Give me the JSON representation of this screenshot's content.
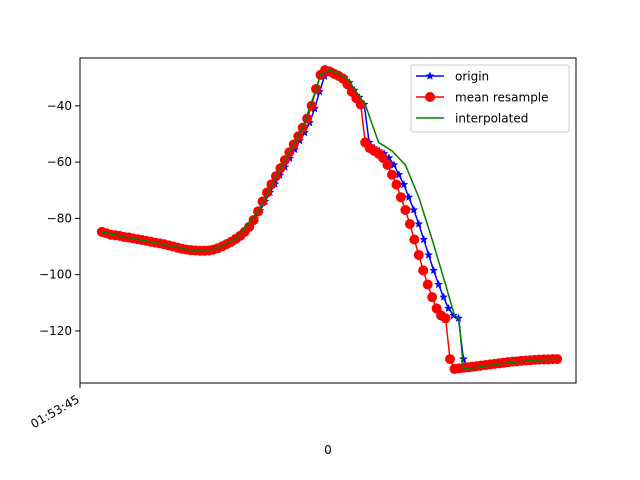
{
  "chart_data": {
    "type": "line",
    "title": "",
    "xlabel": "0",
    "ylabel": "",
    "x_tick_labels": [
      "01:53:45"
    ],
    "yticks": [
      -40,
      -60,
      -80,
      -100,
      -120
    ],
    "ylim": [
      -138.5,
      -23
    ],
    "xlim": [
      0,
      100
    ],
    "grid": false,
    "legend_position": "top-right",
    "series": [
      {
        "name": "origin",
        "color": "#0000ff",
        "marker": "star",
        "x": [
          4.4,
          5.4,
          6.4,
          7.4,
          8.4,
          9.3,
          10.3,
          11.3,
          12.3,
          13.3,
          14.3,
          15.3,
          16.3,
          17.3,
          18.3,
          19.3,
          20.3,
          21.3,
          22.3,
          23.3,
          24.3,
          25.3,
          26.3,
          27.3,
          28.3,
          29.3,
          30.3,
          31.3,
          32.3,
          33.3,
          34.3,
          35.3,
          36.3,
          37.3,
          38.3,
          39.3,
          40.3,
          41.3,
          42.3,
          43.3,
          44.3,
          45.3,
          46.3,
          47.3,
          48.3,
          49.3,
          50.3,
          51.3,
          52.3,
          53.3,
          54.3,
          55.3,
          56.3,
          57.3,
          58.3,
          59.3,
          60.3,
          61.3,
          62.3,
          63.3,
          64.3,
          65.3,
          66.3,
          67.3,
          68.3,
          69.3,
          70.3,
          71.3,
          72.3,
          73.3,
          74.3,
          75.3,
          76.3,
          77.3,
          78.3,
          79.3,
          80.3,
          81.3,
          82.3,
          83.3,
          84.3,
          85.3,
          86.3,
          87.3,
          88.3,
          89.3,
          90.3,
          91.3,
          92.3,
          93.3,
          94.3,
          95.3,
          96.3
        ],
        "y": [
          -84.8,
          -85.3,
          -85.8,
          -86.0,
          -86.3,
          -86.8,
          -87.0,
          -87.3,
          -87.6,
          -88.0,
          -88.4,
          -88.7,
          -89.0,
          -89.4,
          -89.7,
          -90.2,
          -90.7,
          -91.1,
          -91.4,
          -91.5,
          -91.6,
          -91.5,
          -91.3,
          -90.8,
          -90.0,
          -89.2,
          -88.3,
          -87.3,
          -86.0,
          -84.3,
          -82.5,
          -80.0,
          -77.3,
          -74.0,
          -70.8,
          -67.8,
          -64.7,
          -61.8,
          -58.7,
          -55.5,
          -52.4,
          -49.5,
          -46.0,
          -41.0,
          -35.0,
          -29.5,
          -27.5,
          -28.2,
          -29.0,
          -30.0,
          -31.8,
          -34.5,
          -37.0,
          -39.5,
          -53.0,
          -55.0,
          -56.0,
          -57.0,
          -58.5,
          -61.0,
          -64.5,
          -68.0,
          -72.5,
          -77.0,
          -82.0,
          -87.5,
          -93.0,
          -98.5,
          -103.5,
          -108.0,
          -112.0,
          -114.5,
          -115.5,
          -130.0,
          -133.5,
          -133.2,
          -133.0,
          -132.7,
          -132.4,
          -132.1,
          -131.8,
          -131.5,
          -131.2,
          -130.9,
          -130.7,
          -130.5,
          -130.3,
          -130.2,
          -130.1,
          -130.1,
          -130.0,
          -130.0,
          -130.0
        ]
      },
      {
        "name": "mean resample",
        "color": "#ff0000",
        "marker": "circle",
        "x": [
          4.4,
          5.3,
          6.2,
          7.1,
          8.0,
          8.9,
          9.8,
          10.7,
          11.6,
          12.5,
          13.4,
          14.3,
          15.2,
          16.1,
          17.0,
          17.9,
          18.8,
          19.7,
          20.6,
          21.5,
          22.4,
          23.3,
          24.2,
          25.1,
          26.0,
          26.9,
          27.8,
          28.7,
          29.6,
          30.5,
          31.4,
          32.3,
          33.2,
          34.1,
          35.0,
          35.9,
          36.8,
          37.7,
          38.6,
          39.5,
          40.4,
          41.3,
          42.2,
          43.1,
          44.0,
          44.9,
          45.8,
          46.7,
          47.6,
          48.5,
          49.4,
          50.3,
          51.2,
          52.1,
          53.0,
          53.9,
          54.8,
          55.7,
          56.6,
          57.5,
          58.4,
          59.3,
          60.2,
          61.1,
          62.0,
          62.9,
          63.8,
          64.7,
          65.6,
          66.5,
          67.4,
          68.3,
          69.2,
          70.1,
          71.0,
          71.9,
          72.8,
          73.7,
          74.6,
          75.5,
          76.4,
          77.3,
          78.2,
          79.1,
          80.0,
          80.9,
          81.8,
          82.7,
          83.6,
          84.5,
          85.4,
          86.3,
          87.2,
          88.1,
          89.0,
          89.9,
          90.8,
          91.7,
          92.6,
          93.5,
          94.4,
          95.3,
          96.2
        ],
        "y": [
          -84.8,
          -85.3,
          -85.8,
          -86.0,
          -86.2,
          -86.6,
          -86.8,
          -87.1,
          -87.4,
          -87.7,
          -88.0,
          -88.3,
          -88.6,
          -88.9,
          -89.2,
          -89.6,
          -90.0,
          -90.4,
          -90.8,
          -91.1,
          -91.3,
          -91.4,
          -91.5,
          -91.5,
          -91.4,
          -91.1,
          -90.6,
          -89.9,
          -89.1,
          -88.3,
          -87.3,
          -86.2,
          -84.8,
          -83.0,
          -80.6,
          -77.5,
          -74.0,
          -70.8,
          -67.9,
          -65.0,
          -62.2,
          -59.3,
          -56.5,
          -53.7,
          -50.8,
          -47.8,
          -44.5,
          -40.0,
          -34.0,
          -29.0,
          -27.3,
          -27.8,
          -28.6,
          -29.3,
          -30.3,
          -32.3,
          -35.0,
          -37.3,
          -39.5,
          -53.0,
          -55.0,
          -56.0,
          -57.0,
          -58.5,
          -61.0,
          -64.5,
          -68.0,
          -72.5,
          -77.0,
          -82.0,
          -87.5,
          -93.0,
          -98.5,
          -103.5,
          -108.0,
          -112.0,
          -114.5,
          -115.5,
          -130.0,
          -133.5,
          -133.3,
          -133.1,
          -132.9,
          -132.7,
          -132.5,
          -132.3,
          -132.1,
          -131.9,
          -131.7,
          -131.5,
          -131.3,
          -131.1,
          -130.9,
          -130.8,
          -130.6,
          -130.5,
          -130.4,
          -130.3,
          -130.2,
          -130.1,
          -130.1,
          -130.0,
          -130.0
        ]
      },
      {
        "name": "interpolated",
        "color": "#008000",
        "marker": "none",
        "x": [
          4.4,
          8.9,
          13.4,
          17.9,
          22.4,
          26.9,
          31.4,
          35.9,
          40.4,
          44.9,
          47.6,
          48.5,
          50.3,
          52.1,
          53.9,
          55.7,
          56.6,
          57.5,
          60.2,
          62.9,
          65.6,
          68.3,
          71.0,
          73.7,
          75.5,
          76.4,
          77.3,
          80.0,
          84.5,
          89.0,
          93.5,
          96.2
        ],
        "y": [
          -84.8,
          -86.6,
          -88.0,
          -89.6,
          -91.3,
          -91.1,
          -87.3,
          -77.5,
          -62.2,
          -47.8,
          -34.0,
          -29.0,
          -27.3,
          -28.6,
          -30.3,
          -35.0,
          -37.3,
          -39.5,
          -53.0,
          -56.0,
          -61.0,
          -72.5,
          -87.5,
          -103.5,
          -114.5,
          -115.5,
          -133.5,
          -133.0,
          -131.7,
          -130.8,
          -130.2,
          -130.0
        ]
      }
    ]
  }
}
